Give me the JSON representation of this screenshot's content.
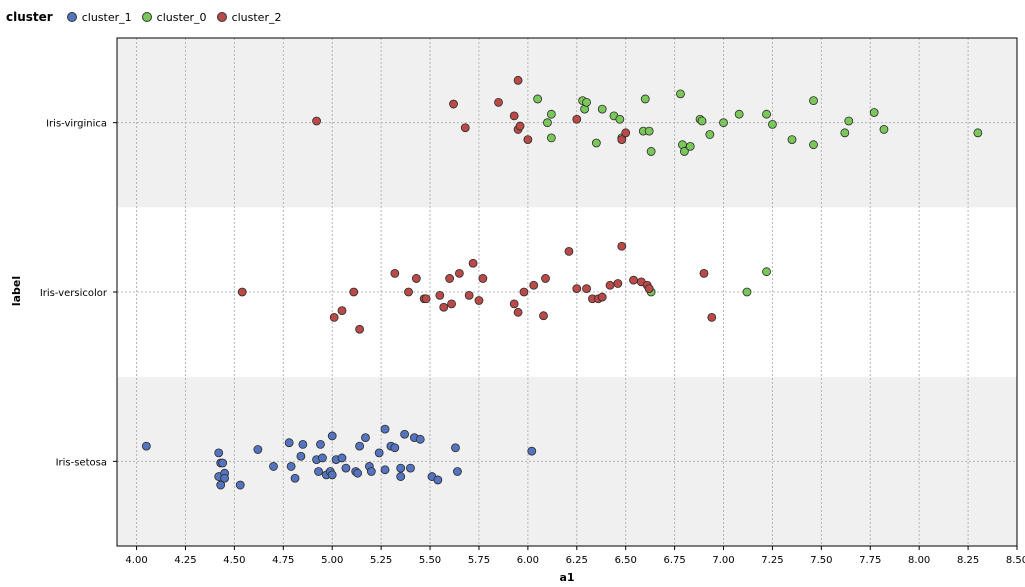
{
  "legend": {
    "title": "cluster",
    "items": [
      {
        "name": "cluster_1",
        "color": "#5474c0"
      },
      {
        "name": "cluster_0",
        "color": "#7ac75a"
      },
      {
        "name": "cluster_2",
        "color": "#b94a48"
      }
    ]
  },
  "chart_data": {
    "type": "scatter",
    "xlabel": "a1",
    "ylabel": "label",
    "xlim": [
      3.9,
      8.5
    ],
    "xticks": [
      "4.00",
      "4.25",
      "4.50",
      "4.75",
      "5.00",
      "5.25",
      "5.50",
      "5.75",
      "6.00",
      "6.25",
      "6.50",
      "6.75",
      "7.00",
      "7.25",
      "7.50",
      "7.75",
      "8.00",
      "8.25",
      "8.50"
    ],
    "categories": [
      "Iris-setosa",
      "Iris-versicolor",
      "Iris-virginica"
    ],
    "grid": true,
    "legend_position": "top-left",
    "series": [
      {
        "name": "cluster_1",
        "color": "#5474c0",
        "points": [
          {
            "x": 4.05,
            "y": "Iris-setosa",
            "j": 0.09
          },
          {
            "x": 4.42,
            "y": "Iris-setosa",
            "j": 0.05
          },
          {
            "x": 4.43,
            "y": "Iris-setosa",
            "j": -0.01
          },
          {
            "x": 4.44,
            "y": "Iris-setosa",
            "j": -0.01
          },
          {
            "x": 4.42,
            "y": "Iris-setosa",
            "j": -0.09
          },
          {
            "x": 4.45,
            "y": "Iris-setosa",
            "j": -0.07
          },
          {
            "x": 4.43,
            "y": "Iris-setosa",
            "j": -0.14
          },
          {
            "x": 4.45,
            "y": "Iris-setosa",
            "j": -0.1
          },
          {
            "x": 4.53,
            "y": "Iris-setosa",
            "j": -0.14
          },
          {
            "x": 4.62,
            "y": "Iris-setosa",
            "j": 0.07
          },
          {
            "x": 4.7,
            "y": "Iris-setosa",
            "j": -0.03
          },
          {
            "x": 4.78,
            "y": "Iris-setosa",
            "j": 0.11
          },
          {
            "x": 4.79,
            "y": "Iris-setosa",
            "j": -0.03
          },
          {
            "x": 4.81,
            "y": "Iris-setosa",
            "j": -0.1
          },
          {
            "x": 4.84,
            "y": "Iris-setosa",
            "j": 0.03
          },
          {
            "x": 4.85,
            "y": "Iris-setosa",
            "j": 0.1
          },
          {
            "x": 4.92,
            "y": "Iris-setosa",
            "j": 0.01
          },
          {
            "x": 4.94,
            "y": "Iris-setosa",
            "j": 0.1
          },
          {
            "x": 4.95,
            "y": "Iris-setosa",
            "j": 0.02
          },
          {
            "x": 4.93,
            "y": "Iris-setosa",
            "j": -0.06
          },
          {
            "x": 4.97,
            "y": "Iris-setosa",
            "j": -0.08
          },
          {
            "x": 4.99,
            "y": "Iris-setosa",
            "j": -0.06
          },
          {
            "x": 5.0,
            "y": "Iris-setosa",
            "j": -0.08
          },
          {
            "x": 5.0,
            "y": "Iris-setosa",
            "j": 0.15
          },
          {
            "x": 5.02,
            "y": "Iris-setosa",
            "j": 0.01
          },
          {
            "x": 5.05,
            "y": "Iris-setosa",
            "j": 0.02
          },
          {
            "x": 5.07,
            "y": "Iris-setosa",
            "j": -0.04
          },
          {
            "x": 5.12,
            "y": "Iris-setosa",
            "j": -0.06
          },
          {
            "x": 5.13,
            "y": "Iris-setosa",
            "j": -0.07
          },
          {
            "x": 5.14,
            "y": "Iris-setosa",
            "j": 0.09
          },
          {
            "x": 5.17,
            "y": "Iris-setosa",
            "j": 0.14
          },
          {
            "x": 5.19,
            "y": "Iris-setosa",
            "j": -0.03
          },
          {
            "x": 5.2,
            "y": "Iris-setosa",
            "j": -0.06
          },
          {
            "x": 5.24,
            "y": "Iris-setosa",
            "j": 0.05
          },
          {
            "x": 5.27,
            "y": "Iris-setosa",
            "j": 0.19
          },
          {
            "x": 5.27,
            "y": "Iris-setosa",
            "j": -0.05
          },
          {
            "x": 5.3,
            "y": "Iris-setosa",
            "j": 0.09
          },
          {
            "x": 5.32,
            "y": "Iris-setosa",
            "j": 0.08
          },
          {
            "x": 5.35,
            "y": "Iris-setosa",
            "j": -0.04
          },
          {
            "x": 5.35,
            "y": "Iris-setosa",
            "j": -0.09
          },
          {
            "x": 5.37,
            "y": "Iris-setosa",
            "j": 0.16
          },
          {
            "x": 5.4,
            "y": "Iris-setosa",
            "j": -0.04
          },
          {
            "x": 5.42,
            "y": "Iris-setosa",
            "j": 0.14
          },
          {
            "x": 5.45,
            "y": "Iris-setosa",
            "j": 0.13
          },
          {
            "x": 5.51,
            "y": "Iris-setosa",
            "j": -0.09
          },
          {
            "x": 5.54,
            "y": "Iris-setosa",
            "j": -0.11
          },
          {
            "x": 5.63,
            "y": "Iris-setosa",
            "j": 0.08
          },
          {
            "x": 5.64,
            "y": "Iris-setosa",
            "j": -0.06
          },
          {
            "x": 6.02,
            "y": "Iris-setosa",
            "j": 0.06
          }
        ]
      },
      {
        "name": "cluster_0",
        "color": "#7ac75a",
        "points": [
          {
            "x": 6.05,
            "y": "Iris-virginica",
            "j": 0.14
          },
          {
            "x": 6.1,
            "y": "Iris-virginica",
            "j": 0.0
          },
          {
            "x": 6.12,
            "y": "Iris-virginica",
            "j": 0.05
          },
          {
            "x": 6.12,
            "y": "Iris-virginica",
            "j": -0.09
          },
          {
            "x": 6.28,
            "y": "Iris-virginica",
            "j": 0.13
          },
          {
            "x": 6.29,
            "y": "Iris-virginica",
            "j": 0.08
          },
          {
            "x": 6.3,
            "y": "Iris-virginica",
            "j": 0.12
          },
          {
            "x": 6.35,
            "y": "Iris-virginica",
            "j": -0.12
          },
          {
            "x": 6.38,
            "y": "Iris-virginica",
            "j": 0.08
          },
          {
            "x": 6.44,
            "y": "Iris-virginica",
            "j": 0.04
          },
          {
            "x": 6.47,
            "y": "Iris-virginica",
            "j": 0.02
          },
          {
            "x": 6.48,
            "y": "Iris-virginica",
            "j": -0.09
          },
          {
            "x": 6.59,
            "y": "Iris-virginica",
            "j": -0.05
          },
          {
            "x": 6.62,
            "y": "Iris-virginica",
            "j": -0.05
          },
          {
            "x": 6.6,
            "y": "Iris-virginica",
            "j": 0.14
          },
          {
            "x": 6.63,
            "y": "Iris-virginica",
            "j": -0.17
          },
          {
            "x": 6.78,
            "y": "Iris-virginica",
            "j": 0.17
          },
          {
            "x": 6.79,
            "y": "Iris-virginica",
            "j": -0.13
          },
          {
            "x": 6.8,
            "y": "Iris-virginica",
            "j": -0.17
          },
          {
            "x": 6.83,
            "y": "Iris-virginica",
            "j": -0.14
          },
          {
            "x": 6.88,
            "y": "Iris-virginica",
            "j": 0.02
          },
          {
            "x": 6.89,
            "y": "Iris-virginica",
            "j": 0.01
          },
          {
            "x": 6.93,
            "y": "Iris-virginica",
            "j": -0.07
          },
          {
            "x": 7.0,
            "y": "Iris-virginica",
            "j": 0.0
          },
          {
            "x": 7.08,
            "y": "Iris-virginica",
            "j": 0.05
          },
          {
            "x": 7.22,
            "y": "Iris-virginica",
            "j": 0.05
          },
          {
            "x": 7.25,
            "y": "Iris-virginica",
            "j": -0.01
          },
          {
            "x": 7.35,
            "y": "Iris-virginica",
            "j": -0.1
          },
          {
            "x": 7.46,
            "y": "Iris-virginica",
            "j": 0.13
          },
          {
            "x": 7.46,
            "y": "Iris-virginica",
            "j": -0.13
          },
          {
            "x": 7.62,
            "y": "Iris-virginica",
            "j": -0.06
          },
          {
            "x": 7.64,
            "y": "Iris-virginica",
            "j": 0.01
          },
          {
            "x": 7.77,
            "y": "Iris-virginica",
            "j": 0.06
          },
          {
            "x": 7.82,
            "y": "Iris-virginica",
            "j": -0.04
          },
          {
            "x": 8.3,
            "y": "Iris-virginica",
            "j": -0.06
          },
          {
            "x": 6.63,
            "y": "Iris-versicolor",
            "j": -0.0
          },
          {
            "x": 7.12,
            "y": "Iris-versicolor",
            "j": -0.0
          },
          {
            "x": 7.22,
            "y": "Iris-versicolor",
            "j": 0.12
          }
        ]
      },
      {
        "name": "cluster_2",
        "color": "#b94a48",
        "points": [
          {
            "x": 4.92,
            "y": "Iris-virginica",
            "j": 0.01
          },
          {
            "x": 5.62,
            "y": "Iris-virginica",
            "j": 0.11
          },
          {
            "x": 5.68,
            "y": "Iris-virginica",
            "j": -0.03
          },
          {
            "x": 5.85,
            "y": "Iris-virginica",
            "j": 0.12
          },
          {
            "x": 5.93,
            "y": "Iris-virginica",
            "j": 0.04
          },
          {
            "x": 5.95,
            "y": "Iris-virginica",
            "j": -0.04
          },
          {
            "x": 5.96,
            "y": "Iris-virginica",
            "j": -0.02
          },
          {
            "x": 5.95,
            "y": "Iris-virginica",
            "j": 0.25
          },
          {
            "x": 6.0,
            "y": "Iris-virginica",
            "j": -0.1
          },
          {
            "x": 6.25,
            "y": "Iris-virginica",
            "j": 0.02
          },
          {
            "x": 6.48,
            "y": "Iris-virginica",
            "j": -0.1
          },
          {
            "x": 6.5,
            "y": "Iris-virginica",
            "j": -0.06
          },
          {
            "x": 4.54,
            "y": "Iris-versicolor",
            "j": -0.0
          },
          {
            "x": 5.01,
            "y": "Iris-versicolor",
            "j": -0.15
          },
          {
            "x": 5.05,
            "y": "Iris-versicolor",
            "j": -0.11
          },
          {
            "x": 5.11,
            "y": "Iris-versicolor",
            "j": -0.0
          },
          {
            "x": 5.14,
            "y": "Iris-versicolor",
            "j": -0.22
          },
          {
            "x": 5.32,
            "y": "Iris-versicolor",
            "j": 0.11
          },
          {
            "x": 5.39,
            "y": "Iris-versicolor",
            "j": -0.0
          },
          {
            "x": 5.43,
            "y": "Iris-versicolor",
            "j": 0.08
          },
          {
            "x": 5.47,
            "y": "Iris-versicolor",
            "j": -0.04
          },
          {
            "x": 5.48,
            "y": "Iris-versicolor",
            "j": -0.04
          },
          {
            "x": 5.55,
            "y": "Iris-versicolor",
            "j": -0.02
          },
          {
            "x": 5.57,
            "y": "Iris-versicolor",
            "j": -0.09
          },
          {
            "x": 5.6,
            "y": "Iris-versicolor",
            "j": 0.08
          },
          {
            "x": 5.61,
            "y": "Iris-versicolor",
            "j": -0.07
          },
          {
            "x": 5.65,
            "y": "Iris-versicolor",
            "j": 0.11
          },
          {
            "x": 5.7,
            "y": "Iris-versicolor",
            "j": -0.02
          },
          {
            "x": 5.72,
            "y": "Iris-versicolor",
            "j": 0.17
          },
          {
            "x": 5.75,
            "y": "Iris-versicolor",
            "j": -0.05
          },
          {
            "x": 5.77,
            "y": "Iris-versicolor",
            "j": 0.08
          },
          {
            "x": 5.93,
            "y": "Iris-versicolor",
            "j": -0.07
          },
          {
            "x": 5.95,
            "y": "Iris-versicolor",
            "j": -0.12
          },
          {
            "x": 5.98,
            "y": "Iris-versicolor",
            "j": 0.0
          },
          {
            "x": 6.03,
            "y": "Iris-versicolor",
            "j": 0.04
          },
          {
            "x": 6.08,
            "y": "Iris-versicolor",
            "j": -0.14
          },
          {
            "x": 6.09,
            "y": "Iris-versicolor",
            "j": 0.08
          },
          {
            "x": 6.21,
            "y": "Iris-versicolor",
            "j": 0.24
          },
          {
            "x": 6.25,
            "y": "Iris-versicolor",
            "j": 0.02
          },
          {
            "x": 6.3,
            "y": "Iris-versicolor",
            "j": 0.02
          },
          {
            "x": 6.33,
            "y": "Iris-versicolor",
            "j": -0.04
          },
          {
            "x": 6.36,
            "y": "Iris-versicolor",
            "j": -0.04
          },
          {
            "x": 6.38,
            "y": "Iris-versicolor",
            "j": -0.03
          },
          {
            "x": 6.42,
            "y": "Iris-versicolor",
            "j": 0.04
          },
          {
            "x": 6.46,
            "y": "Iris-versicolor",
            "j": 0.05
          },
          {
            "x": 6.48,
            "y": "Iris-versicolor",
            "j": 0.27
          },
          {
            "x": 6.54,
            "y": "Iris-versicolor",
            "j": 0.07
          },
          {
            "x": 6.58,
            "y": "Iris-versicolor",
            "j": 0.06
          },
          {
            "x": 6.61,
            "y": "Iris-versicolor",
            "j": 0.04
          },
          {
            "x": 6.62,
            "y": "Iris-versicolor",
            "j": 0.02
          },
          {
            "x": 6.9,
            "y": "Iris-versicolor",
            "j": 0.11
          },
          {
            "x": 6.94,
            "y": "Iris-versicolor",
            "j": -0.15
          }
        ]
      }
    ]
  }
}
